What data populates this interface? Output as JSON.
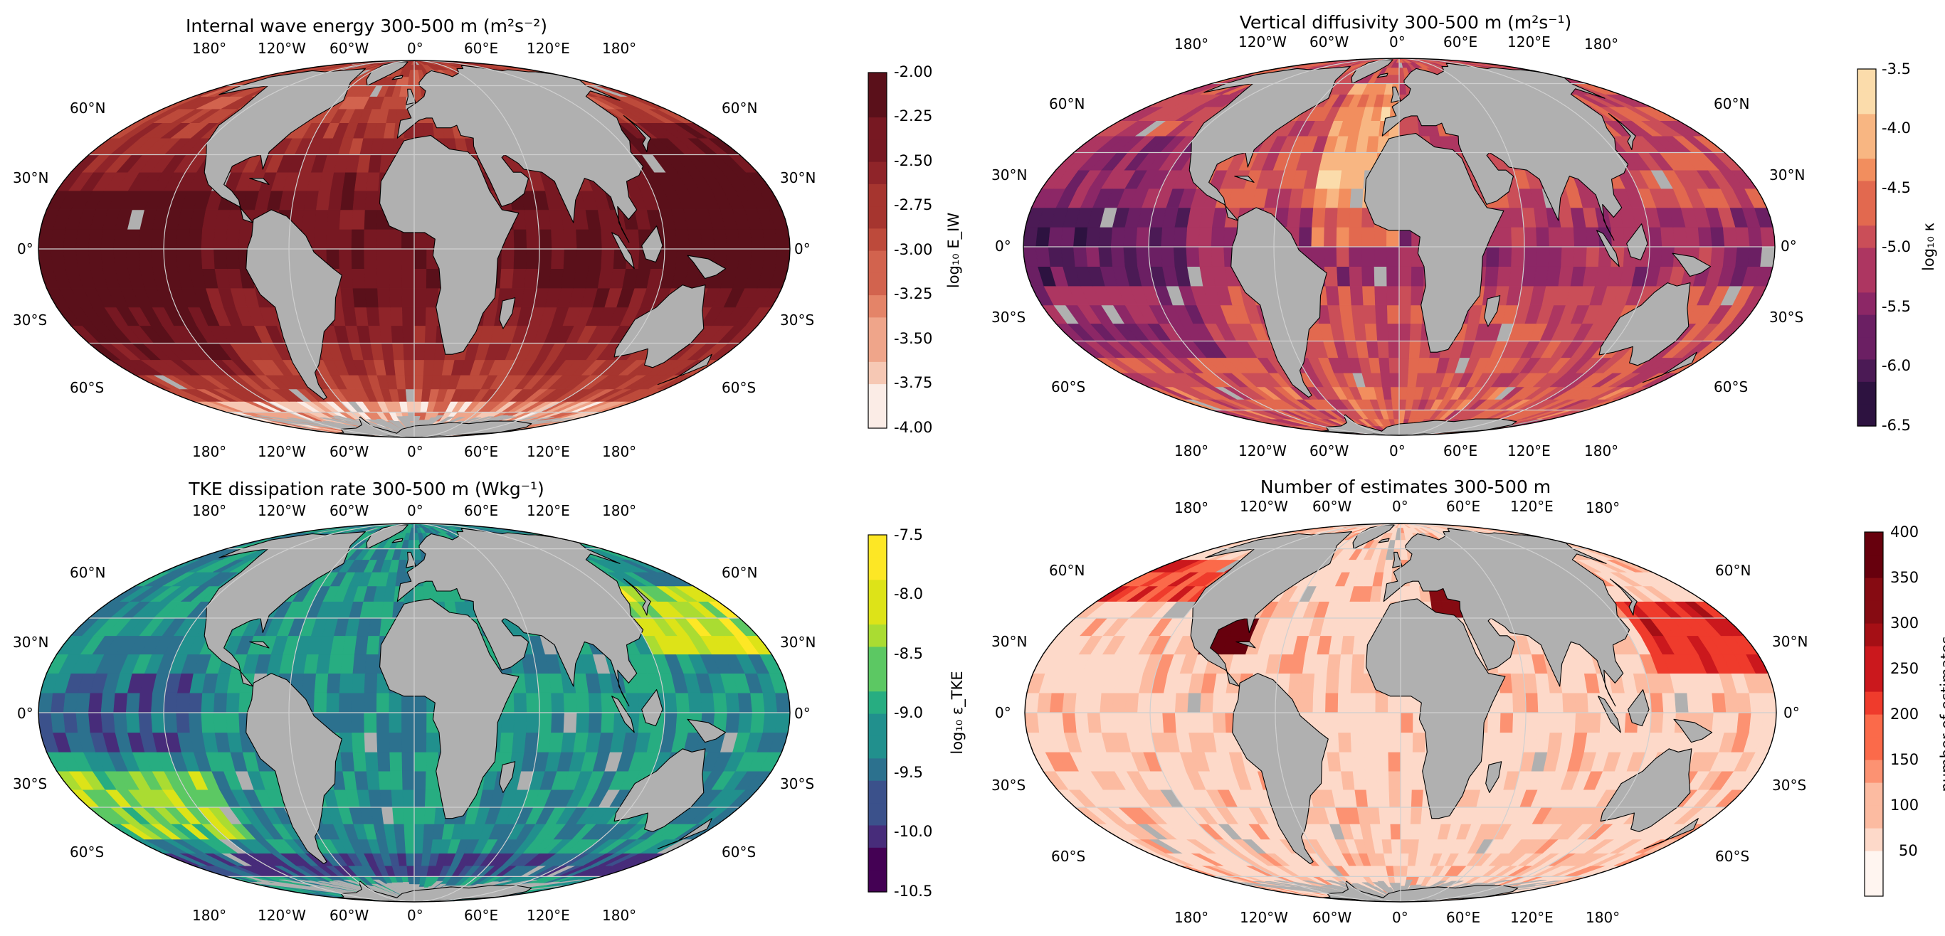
{
  "figure": {
    "lon_labels": [
      "180°",
      "120°W",
      "60°W",
      "0°",
      "60°E",
      "120°E",
      "180°"
    ],
    "lat_labels_left": [
      "60°N",
      "30°N",
      "0°",
      "30°S",
      "60°S"
    ],
    "lat_labels_right": [
      "60°N",
      "30°N",
      "0°",
      "30°S",
      "60°S"
    ],
    "land_color": "#b0b0b0",
    "panels": [
      {
        "title": "Internal wave energy 300-500 m (m²s⁻²)",
        "colorbar_label": "log₁₀ E_IW",
        "colorbar_ticks": [
          "-2.00",
          "-2.25",
          "-2.50",
          "-2.75",
          "-3.00",
          "-3.25",
          "-3.50",
          "-3.75",
          "-4.00"
        ],
        "colormap": [
          "#fbece6",
          "#f6c8b4",
          "#efa58a",
          "#e48468",
          "#d2634e",
          "#bd4a3b",
          "#a6352f",
          "#8f2429",
          "#771822",
          "#5a101a"
        ],
        "range": [
          -4.0,
          -2.0
        ]
      },
      {
        "title": "Vertical diffusivity 300-500 m (m²s⁻¹)",
        "colorbar_label": "log₁₀ κ",
        "colorbar_ticks": [
          "-3.5",
          "-4.0",
          "-4.5",
          "-5.0",
          "-5.5",
          "-6.0",
          "-6.5"
        ],
        "colormap": [
          "#2d1240",
          "#4b1a55",
          "#6b1f63",
          "#8c2766",
          "#ad3661",
          "#ca4e58",
          "#e2694f",
          "#f28e5e",
          "#f8b682",
          "#fbdcab"
        ],
        "range": [
          -6.5,
          -3.5
        ]
      },
      {
        "title": "TKE dissipation rate 300-500 m (Wkg⁻¹)",
        "colorbar_label": "log₁₀ ε_TKE",
        "colorbar_ticks": [
          "-7.5",
          "-8.0",
          "-8.5",
          "-9.0",
          "-9.5",
          "-10.0",
          "-10.5"
        ],
        "colormap": [
          "#440154",
          "#472c7a",
          "#3b518b",
          "#2c718e",
          "#21908d",
          "#27ad81",
          "#5cc863",
          "#aadc32",
          "#dde318",
          "#fde725"
        ],
        "range": [
          -10.5,
          -7.5
        ]
      },
      {
        "title": "Number of estimates 300-500 m",
        "colorbar_label": "number of estimates",
        "colorbar_ticks": [
          "400",
          "350",
          "300",
          "250",
          "200",
          "150",
          "100",
          "50"
        ],
        "colormap": [
          "#fff5f0",
          "#fdd9c9",
          "#fcbba1",
          "#fc9272",
          "#fb6a4a",
          "#ef3b2c",
          "#cb181d",
          "#a50f15",
          "#860b12",
          "#67000d"
        ],
        "range": [
          0,
          400
        ]
      }
    ]
  }
}
